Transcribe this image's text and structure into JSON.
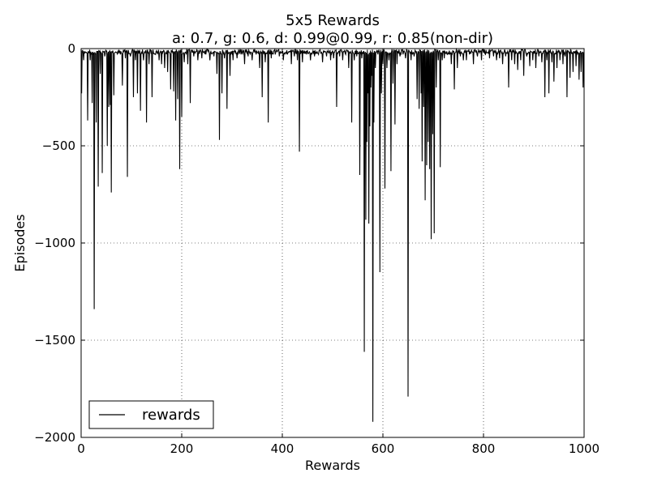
{
  "chart_data": {
    "type": "line",
    "title": "5x5 Rewards",
    "subtitle": "a: 0.7, g: 0.6, d: 0.99@0.99, r: 0.85(non-dir)",
    "xlabel": "Rewards",
    "ylabel": "Episodes",
    "xlim": [
      0,
      1000
    ],
    "ylim": [
      -2000,
      0
    ],
    "xticks": [
      0,
      200,
      400,
      600,
      800,
      1000
    ],
    "yticks": [
      0,
      -500,
      -1000,
      -1500,
      -2000
    ],
    "xtick_labels": [
      "0",
      "200",
      "400",
      "600",
      "800",
      "1000"
    ],
    "ytick_labels": [
      "0",
      "−500",
      "−1000",
      "−1500",
      "−2000"
    ],
    "grid": true,
    "grid_style": "dotted",
    "legend_position": "bottom-left",
    "series": [
      {
        "name": "rewards",
        "color": "#000000",
        "x_start": 0,
        "x_step": 1,
        "baseline": -15,
        "spikes": [
          [
            1,
            -230
          ],
          [
            5,
            -60
          ],
          [
            8,
            -20
          ],
          [
            13,
            -370
          ],
          [
            18,
            -60
          ],
          [
            22,
            -280
          ],
          [
            26,
            -1340
          ],
          [
            30,
            -380
          ],
          [
            34,
            -710
          ],
          [
            38,
            -130
          ],
          [
            42,
            -640
          ],
          [
            47,
            -40
          ],
          [
            52,
            -500
          ],
          [
            55,
            -300
          ],
          [
            58,
            -290
          ],
          [
            60,
            -740
          ],
          [
            65,
            -240
          ],
          [
            70,
            -20
          ],
          [
            78,
            -30
          ],
          [
            82,
            -190
          ],
          [
            88,
            -50
          ],
          [
            92,
            -660
          ],
          [
            98,
            -40
          ],
          [
            104,
            -250
          ],
          [
            108,
            -60
          ],
          [
            112,
            -230
          ],
          [
            118,
            -320
          ],
          [
            124,
            -60
          ],
          [
            130,
            -380
          ],
          [
            135,
            -80
          ],
          [
            141,
            -250
          ],
          [
            148,
            -30
          ],
          [
            155,
            -60
          ],
          [
            160,
            -80
          ],
          [
            166,
            -100
          ],
          [
            172,
            -120
          ],
          [
            178,
            -210
          ],
          [
            184,
            -220
          ],
          [
            188,
            -370
          ],
          [
            192,
            -260
          ],
          [
            196,
            -620
          ],
          [
            200,
            -350
          ],
          [
            205,
            -70
          ],
          [
            212,
            -80
          ],
          [
            217,
            -280
          ],
          [
            224,
            -40
          ],
          [
            232,
            -60
          ],
          [
            240,
            -50
          ],
          [
            248,
            -30
          ],
          [
            256,
            -60
          ],
          [
            264,
            -40
          ],
          [
            270,
            -130
          ],
          [
            275,
            -470
          ],
          [
            280,
            -230
          ],
          [
            285,
            -50
          ],
          [
            290,
            -310
          ],
          [
            296,
            -140
          ],
          [
            302,
            -60
          ],
          [
            310,
            -50
          ],
          [
            318,
            -30
          ],
          [
            325,
            -80
          ],
          [
            332,
            -40
          ],
          [
            340,
            -60
          ],
          [
            348,
            -30
          ],
          [
            355,
            -100
          ],
          [
            360,
            -250
          ],
          [
            366,
            -70
          ],
          [
            372,
            -380
          ],
          [
            378,
            -50
          ],
          [
            386,
            -30
          ],
          [
            394,
            -40
          ],
          [
            402,
            -60
          ],
          [
            410,
            -30
          ],
          [
            418,
            -80
          ],
          [
            424,
            -40
          ],
          [
            430,
            -60
          ],
          [
            434,
            -530
          ],
          [
            440,
            -70
          ],
          [
            448,
            -30
          ],
          [
            456,
            -60
          ],
          [
            464,
            -40
          ],
          [
            472,
            -30
          ],
          [
            480,
            -70
          ],
          [
            488,
            -40
          ],
          [
            496,
            -60
          ],
          [
            502,
            -50
          ],
          [
            508,
            -300
          ],
          [
            514,
            -40
          ],
          [
            520,
            -60
          ],
          [
            526,
            -30
          ],
          [
            532,
            -100
          ],
          [
            538,
            -380
          ],
          [
            543,
            -60
          ],
          [
            548,
            -40
          ],
          [
            554,
            -650
          ],
          [
            558,
            -50
          ],
          [
            563,
            -1560
          ],
          [
            566,
            -880
          ],
          [
            568,
            -480
          ],
          [
            570,
            -230
          ],
          [
            572,
            -900
          ],
          [
            574,
            -400
          ],
          [
            576,
            -200
          ],
          [
            578,
            -140
          ],
          [
            580,
            -1920
          ],
          [
            582,
            -380
          ],
          [
            585,
            -100
          ],
          [
            590,
            -30
          ],
          [
            594,
            -1150
          ],
          [
            597,
            -230
          ],
          [
            600,
            -80
          ],
          [
            604,
            -720
          ],
          [
            608,
            -100
          ],
          [
            612,
            -60
          ],
          [
            616,
            -630
          ],
          [
            620,
            -180
          ],
          [
            624,
            -390
          ],
          [
            628,
            -80
          ],
          [
            634,
            -40
          ],
          [
            640,
            -30
          ],
          [
            645,
            -50
          ],
          [
            650,
            -1790
          ],
          [
            656,
            -60
          ],
          [
            662,
            -40
          ],
          [
            668,
            -260
          ],
          [
            672,
            -310
          ],
          [
            676,
            -230
          ],
          [
            678,
            -580
          ],
          [
            681,
            -300
          ],
          [
            684,
            -780
          ],
          [
            687,
            -600
          ],
          [
            690,
            -480
          ],
          [
            693,
            -620
          ],
          [
            696,
            -980
          ],
          [
            699,
            -440
          ],
          [
            702,
            -950
          ],
          [
            706,
            -200
          ],
          [
            710,
            -60
          ],
          [
            714,
            -610
          ],
          [
            718,
            -60
          ],
          [
            722,
            -50
          ],
          [
            728,
            -30
          ],
          [
            736,
            -80
          ],
          [
            742,
            -210
          ],
          [
            748,
            -100
          ],
          [
            754,
            -40
          ],
          [
            760,
            -60
          ],
          [
            766,
            -60
          ],
          [
            772,
            -30
          ],
          [
            780,
            -80
          ],
          [
            788,
            -40
          ],
          [
            796,
            -60
          ],
          [
            804,
            -30
          ],
          [
            812,
            -50
          ],
          [
            820,
            -40
          ],
          [
            826,
            -60
          ],
          [
            832,
            -50
          ],
          [
            838,
            -80
          ],
          [
            844,
            -40
          ],
          [
            850,
            -200
          ],
          [
            856,
            -60
          ],
          [
            862,
            -80
          ],
          [
            868,
            -110
          ],
          [
            874,
            -60
          ],
          [
            880,
            -140
          ],
          [
            886,
            -40
          ],
          [
            892,
            -90
          ],
          [
            898,
            -60
          ],
          [
            904,
            -100
          ],
          [
            910,
            -40
          ],
          [
            916,
            -70
          ],
          [
            922,
            -250
          ],
          [
            926,
            -60
          ],
          [
            930,
            -230
          ],
          [
            936,
            -70
          ],
          [
            940,
            -170
          ],
          [
            946,
            -100
          ],
          [
            952,
            -60
          ],
          [
            958,
            -80
          ],
          [
            962,
            -40
          ],
          [
            966,
            -250
          ],
          [
            972,
            -150
          ],
          [
            978,
            -120
          ],
          [
            984,
            -90
          ],
          [
            990,
            -160
          ],
          [
            994,
            -120
          ],
          [
            998,
            -200
          ]
        ]
      }
    ]
  }
}
